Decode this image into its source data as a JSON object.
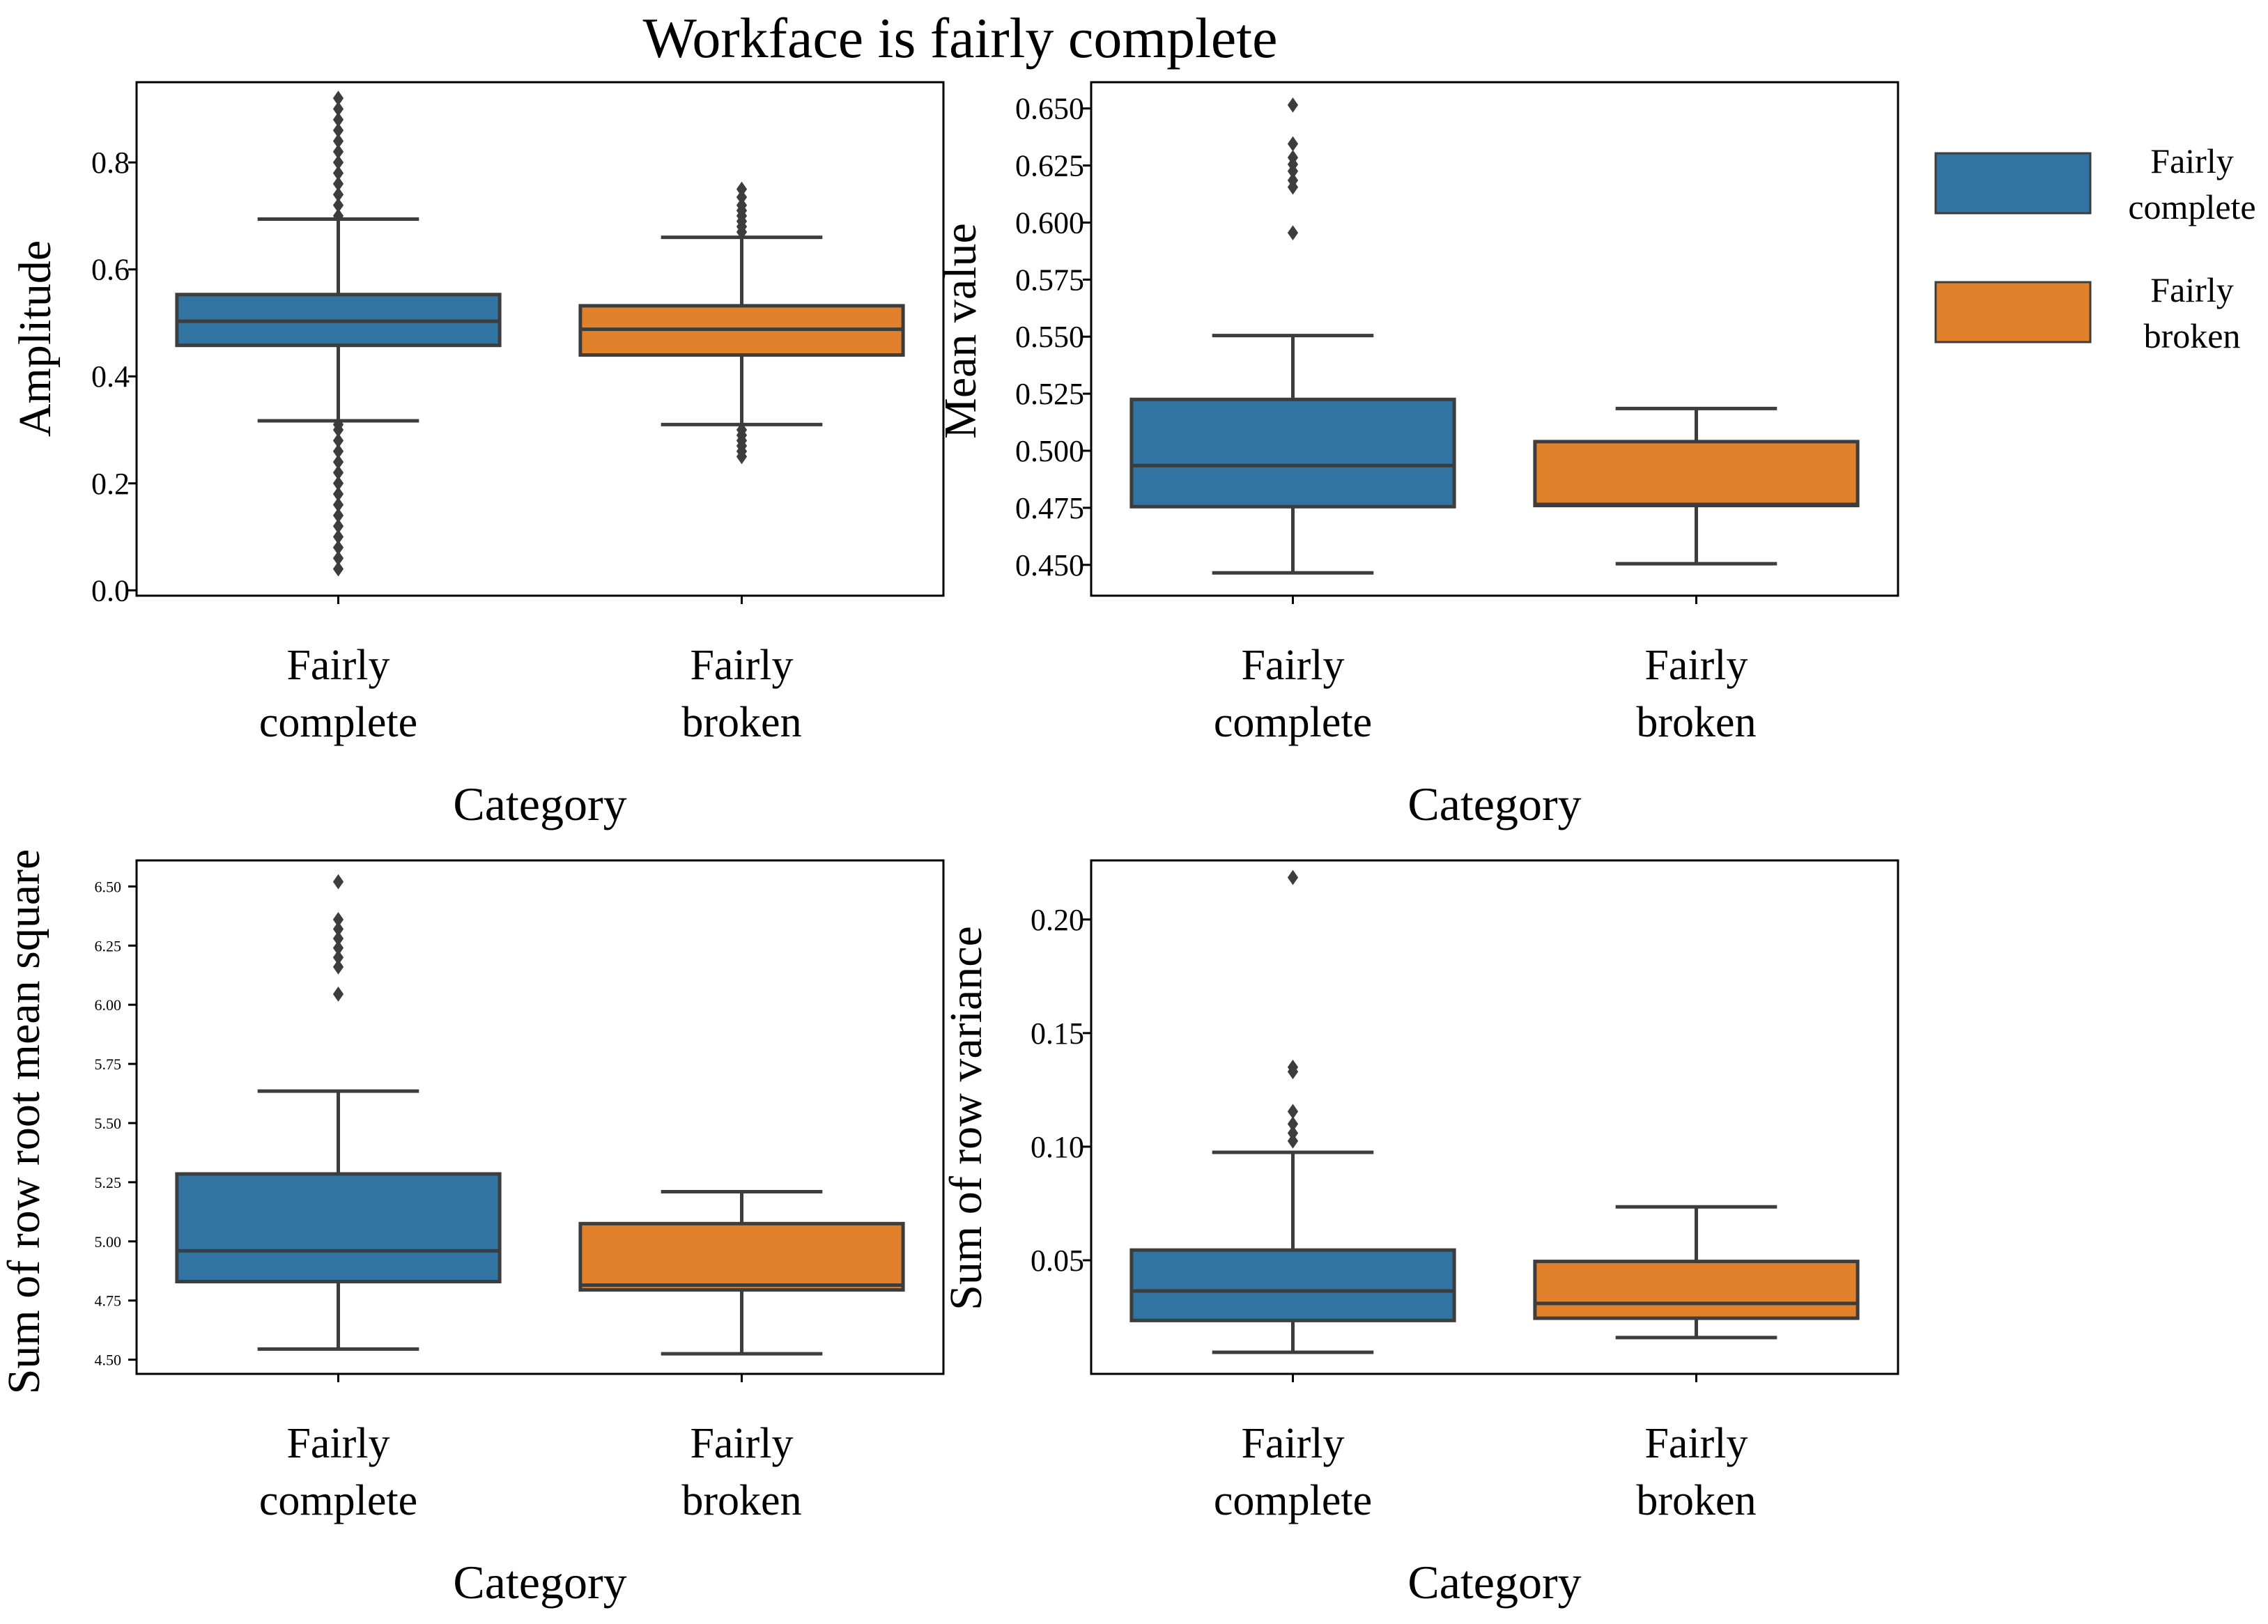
{
  "title": "Workface is fairly complete",
  "colors": {
    "fairly_complete": "#3274a1",
    "fairly_broken": "#e1812c",
    "line": "#3d3d3d",
    "axis": "#000000"
  },
  "legend": {
    "position": "right",
    "entries": [
      {
        "label_lines": [
          "Fairly",
          "complete"
        ],
        "color": "#3274a1"
      },
      {
        "label_lines": [
          "Fairly",
          "broken"
        ],
        "color": "#e1812c"
      }
    ]
  },
  "chart_data": [
    {
      "id": "amplitude",
      "type": "box",
      "xlabel": "Category",
      "ylabel": "Amplitude",
      "ylim": [
        -0.01,
        0.95
      ],
      "yticks": [
        0.0,
        0.2,
        0.4,
        0.6,
        0.8
      ],
      "ytick_labels": [
        "0.0",
        "0.2",
        "0.4",
        "0.6",
        "0.8"
      ],
      "ytick_size": "large",
      "categories": [
        {
          "label_lines": [
            "Fairly",
            "complete"
          ],
          "q1": 0.458,
          "median": 0.503,
          "q3": 0.553,
          "whisker_low": 0.317,
          "whisker_high": 0.694,
          "fliers": [
            0.04,
            0.06,
            0.08,
            0.1,
            0.12,
            0.14,
            0.16,
            0.18,
            0.2,
            0.22,
            0.24,
            0.26,
            0.28,
            0.3,
            0.31,
            0.7,
            0.72,
            0.74,
            0.76,
            0.78,
            0.8,
            0.82,
            0.84,
            0.86,
            0.88,
            0.9,
            0.92
          ]
        },
        {
          "label_lines": [
            "Fairly",
            "broken"
          ],
          "q1": 0.44,
          "median": 0.488,
          "q3": 0.532,
          "whisker_low": 0.31,
          "whisker_high": 0.66,
          "fliers": [
            0.25,
            0.26,
            0.27,
            0.28,
            0.29,
            0.3,
            0.67,
            0.68,
            0.69,
            0.7,
            0.71,
            0.72,
            0.735,
            0.75
          ]
        }
      ]
    },
    {
      "id": "mean-value",
      "type": "box",
      "xlabel": "Category",
      "ylabel": "Mean value",
      "ylim": [
        0.4365,
        0.6615
      ],
      "yticks": [
        0.45,
        0.475,
        0.5,
        0.525,
        0.55,
        0.575,
        0.6,
        0.625,
        0.65
      ],
      "ytick_labels": [
        "0.450",
        "0.475",
        "0.500",
        "0.525",
        "0.550",
        "0.575",
        "0.600",
        "0.625",
        "0.650"
      ],
      "ytick_size": "large",
      "categories": [
        {
          "label_lines": [
            "Fairly",
            "complete"
          ],
          "q1": 0.4755,
          "median": 0.4935,
          "q3": 0.5225,
          "whisker_low": 0.4465,
          "whisker_high": 0.5505,
          "fliers": [
            0.5955,
            0.6155,
            0.6185,
            0.6225,
            0.6255,
            0.6285,
            0.6345,
            0.6515
          ]
        },
        {
          "label_lines": [
            "Fairly",
            "broken"
          ],
          "q1": 0.476,
          "median": 0.4765,
          "q3": 0.504,
          "whisker_low": 0.4505,
          "whisker_high": 0.5185,
          "fliers": []
        }
      ]
    },
    {
      "id": "row-rms-sum",
      "type": "box",
      "xlabel": "Category",
      "ylabel": "Sum of row root mean square",
      "ylim": [
        4.44,
        6.61
      ],
      "yticks": [
        4.5,
        4.75,
        5.0,
        5.25,
        5.5,
        5.75,
        6.0,
        6.25,
        6.5
      ],
      "ytick_labels": [
        "4.50",
        "4.75",
        "5.00",
        "5.25",
        "5.50",
        "5.75",
        "6.00",
        "6.25",
        "6.50"
      ],
      "ytick_size": "small",
      "categories": [
        {
          "label_lines": [
            "Fairly",
            "complete"
          ],
          "q1": 4.83,
          "median": 4.96,
          "q3": 5.285,
          "whisker_low": 4.545,
          "whisker_high": 5.635,
          "fliers": [
            6.045,
            6.16,
            6.2,
            6.24,
            6.28,
            6.32,
            6.36,
            6.52
          ]
        },
        {
          "label_lines": [
            "Fairly",
            "broken"
          ],
          "q1": 4.795,
          "median": 4.815,
          "q3": 5.075,
          "whisker_low": 4.525,
          "whisker_high": 5.21,
          "fliers": []
        }
      ]
    },
    {
      "id": "row-variance-sum",
      "type": "box",
      "xlabel": "Category",
      "ylabel": "Sum of row variance",
      "ylim": [
        0.0,
        0.226
      ],
      "yticks": [
        0.05,
        0.1,
        0.15,
        0.2
      ],
      "ytick_labels": [
        "0.05",
        "0.10",
        "0.15",
        "0.20"
      ],
      "ytick_size": "large",
      "categories": [
        {
          "label_lines": [
            "Fairly",
            "complete"
          ],
          "q1": 0.0235,
          "median": 0.0365,
          "q3": 0.0545,
          "whisker_low": 0.0095,
          "whisker_high": 0.0975,
          "fliers": [
            0.1025,
            0.106,
            0.11,
            0.1155,
            0.133,
            0.135,
            0.2185
          ]
        },
        {
          "label_lines": [
            "Fairly",
            "broken"
          ],
          "q1": 0.0245,
          "median": 0.031,
          "q3": 0.0495,
          "whisker_low": 0.016,
          "whisker_high": 0.0735,
          "fliers": []
        }
      ]
    }
  ]
}
